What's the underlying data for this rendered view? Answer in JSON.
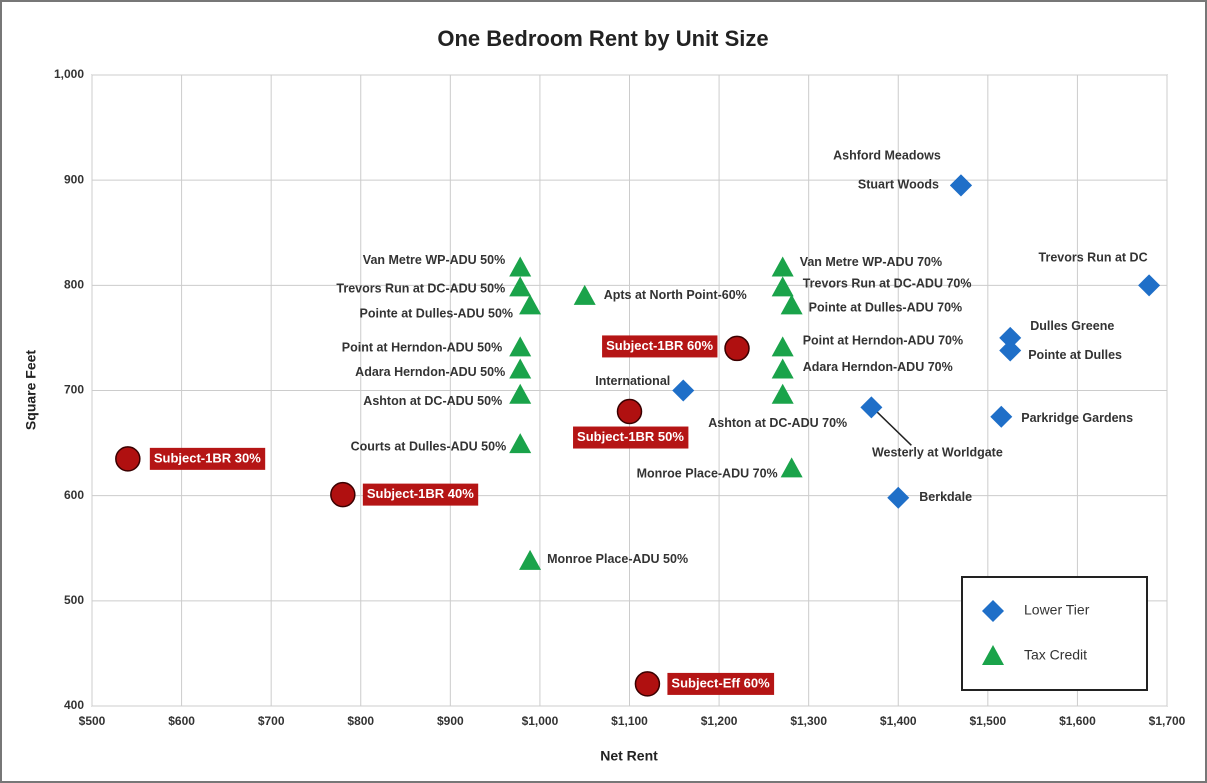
{
  "chart_data": {
    "type": "scatter",
    "title": "One Bedroom Rent by Unit Size",
    "x_label": "Net Rent",
    "y_label": "Square Feet",
    "xlim": [
      500,
      1700
    ],
    "ylim": [
      400,
      1000
    ],
    "xticks": [
      {
        "value": 500,
        "label": "$500"
      },
      {
        "value": 600,
        "label": "$600"
      },
      {
        "value": 700,
        "label": "$700"
      },
      {
        "value": 800,
        "label": "$800"
      },
      {
        "value": 900,
        "label": "$900"
      },
      {
        "value": 1000,
        "label": "$1,000"
      },
      {
        "value": 1100,
        "label": "$1,100"
      },
      {
        "value": 1200,
        "label": "$1,200"
      },
      {
        "value": 1300,
        "label": "$1,300"
      },
      {
        "value": 1400,
        "label": "$1,400"
      },
      {
        "value": 1500,
        "label": "$1,500"
      },
      {
        "value": 1600,
        "label": "$1,600"
      },
      {
        "value": 1700,
        "label": "$1,700"
      }
    ],
    "yticks": [
      400,
      500,
      600,
      700,
      800,
      900,
      {
        "value": 1000,
        "label": "1,000"
      }
    ],
    "grid": true,
    "legend": "lower right",
    "series": [
      {
        "name": "Lower Tier",
        "color": "#1f6fc8",
        "marker": "diamond",
        "labels": [
          "Ashford Meadows",
          "Stuart Woods",
          "Trevors Run at DC",
          "Dulles Greene",
          "Pointe at Dulles",
          "International",
          "Westerly at Worldgate",
          "Parkridge Gardens",
          "Berkdale"
        ],
        "x": [
          1470,
          1470,
          1680,
          1525,
          1525,
          1160,
          1370,
          1515,
          1400
        ],
        "values": [
          895,
          895,
          800,
          750,
          738,
          700,
          684,
          675,
          598
        ]
      },
      {
        "name": "Tax Credit",
        "color": "#1aa34a",
        "marker": "triangle",
        "labels": [
          "Van Metre WP-ADU 50%",
          "Trevors Run at DC-ADU 50%",
          "Pointe at Dulles-ADU 50%",
          "Point at Herndon-ADU 50%",
          "Adara Herndon-ADU 50%",
          "Ashton at DC-ADU 50%",
          "Courts at Dulles-ADU 50%",
          "Monroe Place-ADU 50%",
          "Apts at North Point-60%",
          "Van Metre WP-ADU 70%",
          "Trevors Run at DC-ADU 70%",
          "Pointe at Dulles-ADU 70%",
          "Point at Herndon-ADU 70%",
          "Adara Herndon-ADU 70%",
          "Ashton at DC-ADU 70%",
          "Monroe Place-ADU 70%"
        ],
        "x": [
          978,
          978,
          989,
          978,
          978,
          978,
          978,
          989,
          1050,
          1271,
          1271,
          1281,
          1271,
          1271,
          1271,
          1281
        ],
        "values": [
          817,
          798,
          781,
          741,
          720,
          696,
          649,
          538,
          790,
          817,
          798,
          781,
          741,
          720,
          696,
          626
        ]
      },
      {
        "color": "#b01010",
        "marker": "circle",
        "labels": [
          "Subject-1BR 30%",
          "Subject-1BR 40%",
          "Subject-1BR 50%",
          "Subject-1BR 60%",
          "Subject-Eff 60%"
        ],
        "x": [
          540,
          780,
          1100,
          1220,
          1120
        ],
        "values": [
          635,
          601,
          680,
          740,
          421
        ]
      }
    ]
  }
}
